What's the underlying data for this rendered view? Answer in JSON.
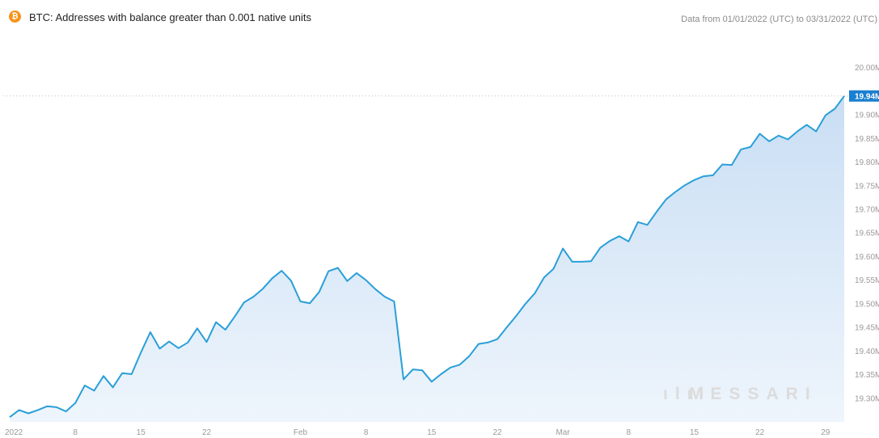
{
  "header": {
    "logo_glyph": "₿",
    "title": "BTC: Addresses with balance greater than 0.001 native units",
    "range": "Data from 01/01/2022 (UTC) to 03/31/2022 (UTC)"
  },
  "watermark": {
    "mark": "ılıl",
    "text": "MESSARI"
  },
  "colors": {
    "line": "#2a9fd8",
    "area_top": "#c9def4",
    "area_bottom": "#eef5fc",
    "accent_label": "#1a7fd1",
    "btc_orange": "#f7931a"
  },
  "chart_data": {
    "type": "area",
    "title": "BTC: Addresses with balance greater than 0.001 native units",
    "xlabel": "",
    "ylabel": "",
    "unit_suffix": "M",
    "ylim": [
      19.25,
      20.02
    ],
    "yticks": [
      "20.00M",
      "19.90M",
      "19.85M",
      "19.80M",
      "19.75M",
      "19.70M",
      "19.65M",
      "19.60M",
      "19.55M",
      "19.50M",
      "19.45M",
      "19.40M",
      "19.35M",
      "19.30M"
    ],
    "ytick_values": [
      20.0,
      19.9,
      19.85,
      19.8,
      19.75,
      19.7,
      19.65,
      19.6,
      19.55,
      19.5,
      19.45,
      19.4,
      19.35,
      19.3
    ],
    "xticks": [
      {
        "label": "2022",
        "day": 0
      },
      {
        "label": "8",
        "day": 7
      },
      {
        "label": "15",
        "day": 14
      },
      {
        "label": "22",
        "day": 21
      },
      {
        "label": "Feb",
        "day": 31
      },
      {
        "label": "8",
        "day": 38
      },
      {
        "label": "15",
        "day": 45
      },
      {
        "label": "22",
        "day": 52
      },
      {
        "label": "Mar",
        "day": 59
      },
      {
        "label": "8",
        "day": 66
      },
      {
        "label": "15",
        "day": 73
      },
      {
        "label": "22",
        "day": 80
      },
      {
        "label": "29",
        "day": 87
      }
    ],
    "current_value_label": "19.94M",
    "current_value": 19.94,
    "x_start": "2022-01-01",
    "values": [
      19.26,
      19.275,
      19.268,
      19.275,
      19.283,
      19.281,
      19.272,
      19.29,
      19.327,
      19.316,
      19.347,
      19.323,
      19.353,
      19.351,
      19.397,
      19.44,
      19.405,
      19.42,
      19.406,
      19.418,
      19.448,
      19.419,
      19.461,
      19.445,
      19.473,
      19.503,
      19.515,
      19.532,
      19.554,
      19.57,
      19.549,
      19.505,
      19.501,
      19.525,
      19.569,
      19.576,
      19.548,
      19.565,
      19.55,
      19.531,
      19.515,
      19.505,
      19.34,
      19.361,
      19.359,
      19.335,
      19.351,
      19.365,
      19.371,
      19.389,
      19.415,
      19.418,
      19.425,
      19.45,
      19.474,
      19.5,
      19.522,
      19.556,
      19.574,
      19.617,
      19.589,
      19.589,
      19.59,
      19.619,
      19.633,
      19.643,
      19.632,
      19.673,
      19.667,
      19.695,
      19.721,
      19.737,
      19.751,
      19.762,
      19.77,
      19.772,
      19.795,
      19.794,
      19.827,
      19.832,
      19.86,
      19.844,
      19.856,
      19.848,
      19.865,
      19.879,
      19.865,
      19.899,
      19.913,
      19.94
    ]
  }
}
